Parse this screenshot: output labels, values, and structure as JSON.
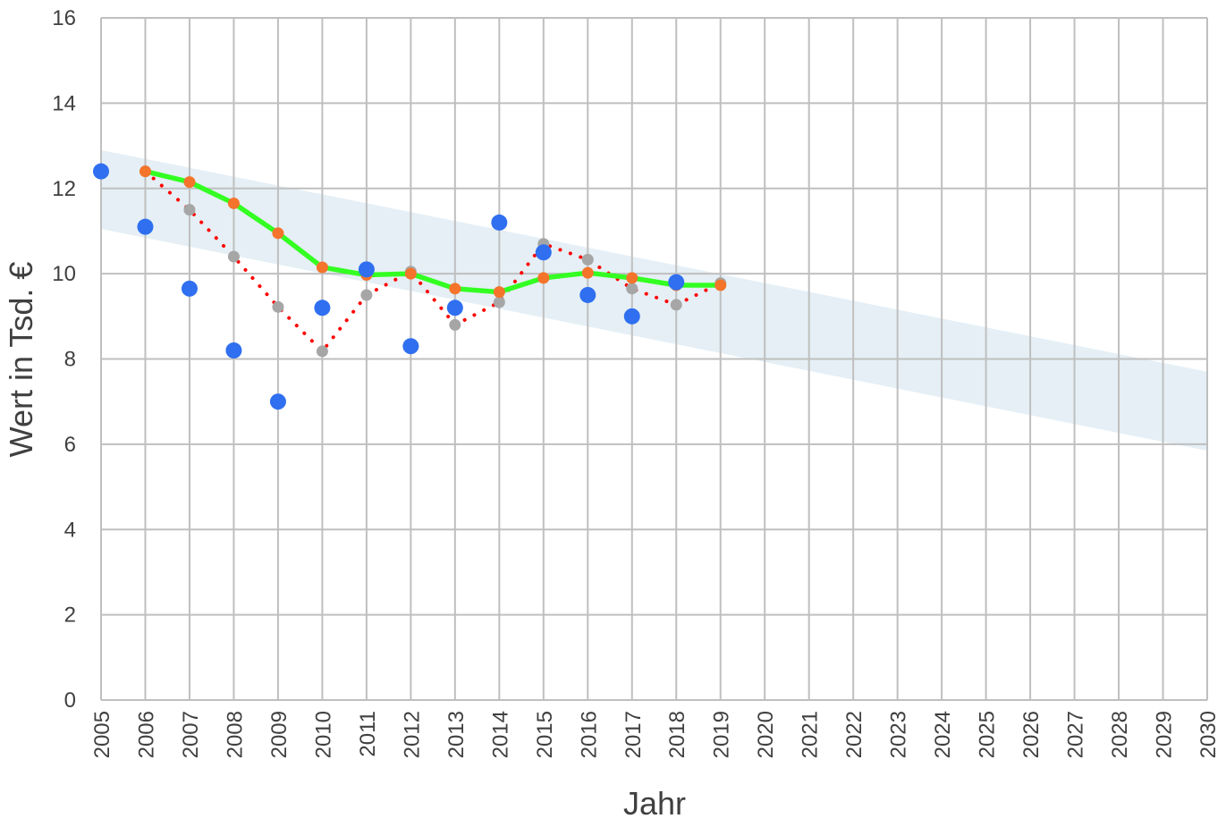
{
  "chart_data": {
    "type": "scatter",
    "title": "",
    "xlabel": "Jahr",
    "ylabel": "Wert in Tsd. €",
    "xlim": [
      2005,
      2030
    ],
    "ylim": [
      0,
      16
    ],
    "x_ticks": [
      2005,
      2006,
      2007,
      2008,
      2009,
      2010,
      2011,
      2012,
      2013,
      2014,
      2015,
      2016,
      2017,
      2018,
      2019,
      2020,
      2021,
      2022,
      2023,
      2024,
      2025,
      2026,
      2027,
      2028,
      2029,
      2030
    ],
    "y_ticks": [
      0,
      2,
      4,
      6,
      8,
      10,
      12,
      14,
      16
    ],
    "grid": true,
    "legend": "none",
    "band": {
      "color": "#dce9f1",
      "upper": [
        [
          2005,
          12.9
        ],
        [
          2030,
          7.7
        ]
      ],
      "lower": [
        [
          2005,
          11.05
        ],
        [
          2030,
          5.85
        ]
      ]
    },
    "series": [
      {
        "kind": "points",
        "color": "#2f6ff0",
        "points": [
          [
            2005,
            12.4
          ],
          [
            2006,
            11.1
          ],
          [
            2007,
            9.65
          ],
          [
            2008,
            8.2
          ],
          [
            2009,
            7.0
          ],
          [
            2010,
            9.2
          ],
          [
            2011,
            10.1
          ],
          [
            2012,
            8.3
          ],
          [
            2013,
            9.2
          ],
          [
            2014,
            11.2
          ],
          [
            2015,
            10.5
          ],
          [
            2016,
            9.5
          ],
          [
            2017,
            9.0
          ],
          [
            2018,
            9.8
          ]
        ]
      },
      {
        "kind": "dotted-line",
        "color": "#ff0000",
        "marker_color": "#a6a6a6",
        "points": [
          [
            2006,
            12.4
          ],
          [
            2007,
            11.5
          ],
          [
            2008,
            10.4
          ],
          [
            2009,
            9.22
          ],
          [
            2010,
            8.18
          ],
          [
            2011,
            9.5
          ],
          [
            2012,
            10.05
          ],
          [
            2013,
            8.8
          ],
          [
            2014,
            9.33
          ],
          [
            2015,
            10.7
          ],
          [
            2016,
            10.33
          ],
          [
            2017,
            9.65
          ],
          [
            2018,
            9.27
          ],
          [
            2019,
            9.78
          ]
        ]
      },
      {
        "kind": "solid-line",
        "color": "#33ff22",
        "marker_color": "#f4742b",
        "points": [
          [
            2006,
            12.4
          ],
          [
            2007,
            12.15
          ],
          [
            2008,
            11.65
          ],
          [
            2009,
            10.95
          ],
          [
            2010,
            10.15
          ],
          [
            2011,
            9.97
          ],
          [
            2012,
            10.0
          ],
          [
            2013,
            9.65
          ],
          [
            2014,
            9.57
          ],
          [
            2015,
            9.9
          ],
          [
            2016,
            10.02
          ],
          [
            2017,
            9.9
          ],
          [
            2018,
            9.73
          ],
          [
            2019,
            9.73
          ]
        ]
      }
    ]
  }
}
